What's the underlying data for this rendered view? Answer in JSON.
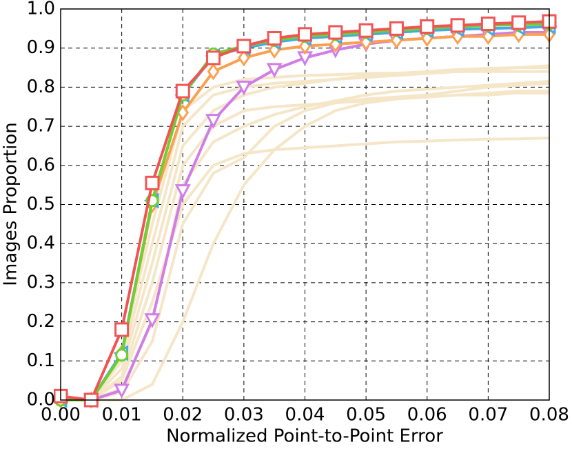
{
  "chart_data": {
    "type": "line",
    "x_label": "Normalized Point-to-Point Error",
    "y_label": "Images Proportion",
    "x": [
      0,
      0.005,
      0.01,
      0.015,
      0.02,
      0.025,
      0.03,
      0.035,
      0.04,
      0.045,
      0.05,
      0.055,
      0.06,
      0.065,
      0.07,
      0.075,
      0.08
    ],
    "xlim": [
      0,
      0.08
    ],
    "ylim": [
      0,
      1
    ],
    "xticks": [
      {
        "value": 0,
        "label": "0.00"
      },
      0.01,
      0.02,
      0.03,
      0.04,
      0.05,
      0.06,
      0.07,
      0.08
    ],
    "yticks": [
      {
        "value": 0,
        "label": "0.0"
      },
      0.1,
      0.2,
      0.3,
      0.4,
      0.5,
      0.6,
      0.7,
      0.8,
      0.9,
      {
        "value": 1,
        "label": "1.0"
      }
    ],
    "grid": true,
    "series": [
      {
        "color": "#f5e6c8",
        "marker": "none",
        "values": [
          0,
          0,
          0,
          0.04,
          0.2,
          0.4,
          0.55,
          0.64,
          0.7,
          0.74,
          0.76,
          0.77,
          0.775,
          0.78,
          0.78,
          0.785,
          0.785
        ]
      },
      {
        "color": "#f5e6c8",
        "marker": "none",
        "values": [
          0,
          0,
          0.05,
          0.25,
          0.5,
          0.6,
          0.63,
          0.64,
          0.645,
          0.65,
          0.655,
          0.66,
          0.662,
          0.665,
          0.667,
          0.668,
          0.67
        ]
      },
      {
        "color": "#f5e6c8",
        "marker": "none",
        "values": [
          0,
          0,
          0.1,
          0.4,
          0.7,
          0.78,
          0.8,
          0.81,
          0.815,
          0.82,
          0.825,
          0.83,
          0.835,
          0.84,
          0.845,
          0.85,
          0.855
        ]
      },
      {
        "color": "#f5e6c8",
        "marker": "none",
        "values": [
          0,
          0,
          0.08,
          0.35,
          0.65,
          0.74,
          0.78,
          0.8,
          0.81,
          0.82,
          0.83,
          0.835,
          0.84,
          0.845,
          0.848,
          0.85,
          0.85
        ]
      },
      {
        "color": "#f5e6c8",
        "marker": "none",
        "values": [
          0,
          0,
          0.02,
          0.15,
          0.45,
          0.58,
          0.62,
          0.7,
          0.74,
          0.76,
          0.77,
          0.775,
          0.78,
          0.79,
          0.8,
          0.805,
          0.81
        ]
      },
      {
        "color": "#f5e6c8",
        "marker": "none",
        "values": [
          0,
          0,
          0.06,
          0.3,
          0.6,
          0.7,
          0.74,
          0.75,
          0.755,
          0.76,
          0.765,
          0.77,
          0.775,
          0.78,
          0.785,
          0.79,
          0.79
        ]
      },
      {
        "color": "#f5e6c8",
        "marker": "none",
        "values": [
          0,
          0,
          0.12,
          0.45,
          0.74,
          0.8,
          0.82,
          0.825,
          0.83,
          0.832,
          0.835,
          0.836,
          0.838,
          0.84,
          0.84,
          0.84,
          0.84
        ]
      },
      {
        "color": "#f5e6c8",
        "marker": "none",
        "values": [
          0,
          0,
          0.03,
          0.2,
          0.55,
          0.66,
          0.7,
          0.73,
          0.75,
          0.765,
          0.78,
          0.79,
          0.795,
          0.8,
          0.805,
          0.81,
          0.815
        ]
      },
      {
        "color": "#d07de8",
        "marker": "triangle-down",
        "values": [
          0,
          0,
          0.025,
          0.205,
          0.535,
          0.715,
          0.8,
          0.845,
          0.875,
          0.895,
          0.91,
          0.92,
          0.925,
          0.93,
          0.935,
          0.94,
          0.94
        ]
      },
      {
        "color": "#fba04f",
        "marker": "diamond",
        "values": [
          0,
          0,
          0.12,
          0.5,
          0.735,
          0.84,
          0.875,
          0.895,
          0.905,
          0.91,
          0.915,
          0.92,
          0.925,
          0.93,
          0.93,
          0.935,
          0.935
        ]
      },
      {
        "color": "#45a9e8",
        "marker": "triangle-left",
        "values": [
          0,
          0,
          0.12,
          0.51,
          0.78,
          0.88,
          0.9,
          0.915,
          0.925,
          0.93,
          0.935,
          0.94,
          0.945,
          0.948,
          0.95,
          0.952,
          0.955
        ]
      },
      {
        "color": "#6ed02c",
        "marker": "circle",
        "values": [
          0,
          0,
          0.115,
          0.51,
          0.78,
          0.885,
          0.905,
          0.92,
          0.93,
          0.935,
          0.94,
          0.945,
          0.95,
          0.955,
          0.958,
          0.96,
          0.962
        ]
      },
      {
        "color": "#f25454",
        "marker": "square",
        "values": [
          0.01,
          0,
          0.18,
          0.555,
          0.79,
          0.875,
          0.905,
          0.925,
          0.935,
          0.94,
          0.945,
          0.95,
          0.955,
          0.958,
          0.962,
          0.965,
          0.968
        ]
      }
    ]
  }
}
